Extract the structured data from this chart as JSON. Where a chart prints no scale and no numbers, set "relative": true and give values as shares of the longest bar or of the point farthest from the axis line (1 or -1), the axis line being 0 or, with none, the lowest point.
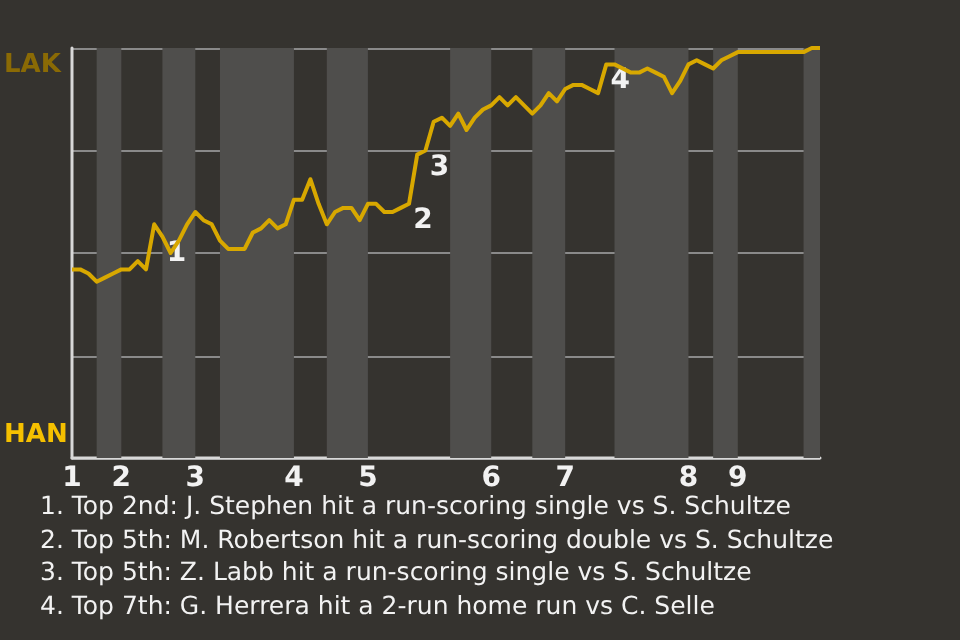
{
  "chart_data": {
    "type": "line",
    "categories": [
      "1",
      null,
      null,
      null,
      null,
      null,
      "2",
      null,
      null,
      null,
      null,
      null,
      null,
      null,
      null,
      "3",
      null,
      null,
      null,
      null,
      null,
      null,
      null,
      null,
      null,
      null,
      null,
      "4",
      null,
      null,
      null,
      null,
      null,
      null,
      null,
      null,
      "5",
      null,
      null,
      null,
      null,
      null,
      null,
      null,
      null,
      null,
      null,
      null,
      null,
      null,
      null,
      "6",
      null,
      null,
      null,
      null,
      null,
      null,
      null,
      null,
      "7",
      null,
      null,
      null,
      null,
      null,
      null,
      null,
      null,
      null,
      null,
      null,
      null,
      null,
      null,
      "8",
      null,
      null,
      null,
      null,
      null,
      "9",
      null,
      null,
      null,
      null,
      null,
      null,
      null,
      null,
      null,
      null
    ],
    "series": [
      {
        "color": "#d8a800",
        "values": [
          0.46,
          0.46,
          0.45,
          0.43,
          0.44,
          0.45,
          0.46,
          0.46,
          0.48,
          0.46,
          0.57,
          0.54,
          0.5,
          0.53,
          0.57,
          0.6,
          0.58,
          0.57,
          0.53,
          0.51,
          0.51,
          0.51,
          0.55,
          0.56,
          0.58,
          0.56,
          0.57,
          0.63,
          0.63,
          0.68,
          0.62,
          0.57,
          0.6,
          0.61,
          0.61,
          0.58,
          0.62,
          0.62,
          0.6,
          0.6,
          0.61,
          0.62,
          0.74,
          0.75,
          0.82,
          0.83,
          0.81,
          0.84,
          0.8,
          0.83,
          0.85,
          0.86,
          0.88,
          0.86,
          0.88,
          0.86,
          0.84,
          0.86,
          0.89,
          0.87,
          0.9,
          0.91,
          0.91,
          0.9,
          0.89,
          0.96,
          0.96,
          0.95,
          0.94,
          0.94,
          0.95,
          0.94,
          0.93,
          0.89,
          0.92,
          0.96,
          0.97,
          0.96,
          0.95,
          0.97,
          0.98,
          0.99,
          0.99,
          0.99,
          0.99,
          0.99,
          0.99,
          0.99,
          0.99,
          0.99,
          1.0,
          1.0
        ]
      }
    ],
    "relative": true,
    "grid": "y",
    "marker": "none",
    "annotations": [
      "LAK",
      "HAN",
      "1",
      "2",
      "3",
      "4",
      "1. Top 2nd: J. Stephen hit a run-scoring single vs S. Schultze",
      "2. Top 5th: M. Robertson hit a run-scoring double vs S. Schultze",
      "3. Top 5th: Z. Labb hit a run-scoring single vs S. Schultze",
      "4. Top 7th: G. Herrera hit a 2-run home run vs C. Selle"
    ]
  }
}
